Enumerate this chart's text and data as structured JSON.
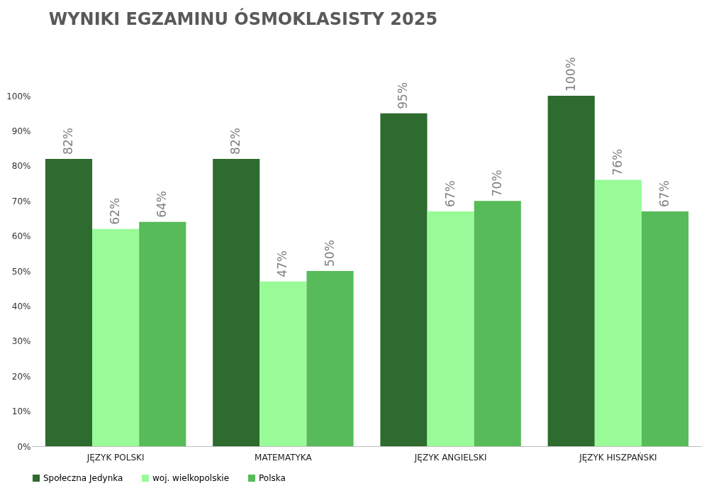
{
  "chart_data": {
    "type": "bar",
    "title": "WYNIKI EGZAMINU ÓSMOKLASISTY 2025",
    "categories": [
      "JĘZYK POLSKI",
      "MATEMATYKA",
      "JĘZYK ANGIELSKI",
      "JĘZYK HISZPAŃSKI"
    ],
    "series": [
      {
        "name": "Społeczna Jedynka",
        "color": "#2e6b2e",
        "values": [
          82,
          82,
          95,
          100
        ],
        "value_labels": [
          "82%",
          "82%",
          "95%",
          "100%"
        ]
      },
      {
        "name": "woj. wielkopolskie",
        "color": "#98fb98",
        "values": [
          62,
          47,
          67,
          76
        ],
        "value_labels": [
          "62%",
          "47%",
          "67%",
          "76%"
        ]
      },
      {
        "name": "Polska",
        "color": "#57bb5a",
        "values": [
          64,
          50,
          70,
          67
        ],
        "value_labels": [
          "64%",
          "50%",
          "70%",
          "67%"
        ]
      }
    ],
    "ylim": [
      0,
      100
    ],
    "yticks": [
      {
        "value": 0,
        "label": "0%"
      },
      {
        "value": 10,
        "label": "10%"
      },
      {
        "value": 20,
        "label": "20%"
      },
      {
        "value": 30,
        "label": "30%"
      },
      {
        "value": 40,
        "label": "40%"
      },
      {
        "value": 50,
        "label": "50%"
      },
      {
        "value": 60,
        "label": "60%"
      },
      {
        "value": 70,
        "label": "70%"
      },
      {
        "value": 80,
        "label": "80%"
      },
      {
        "value": 90,
        "label": "90%"
      },
      {
        "value": 100,
        "label": "100%"
      }
    ],
    "grid": false,
    "legend": "bottom"
  }
}
